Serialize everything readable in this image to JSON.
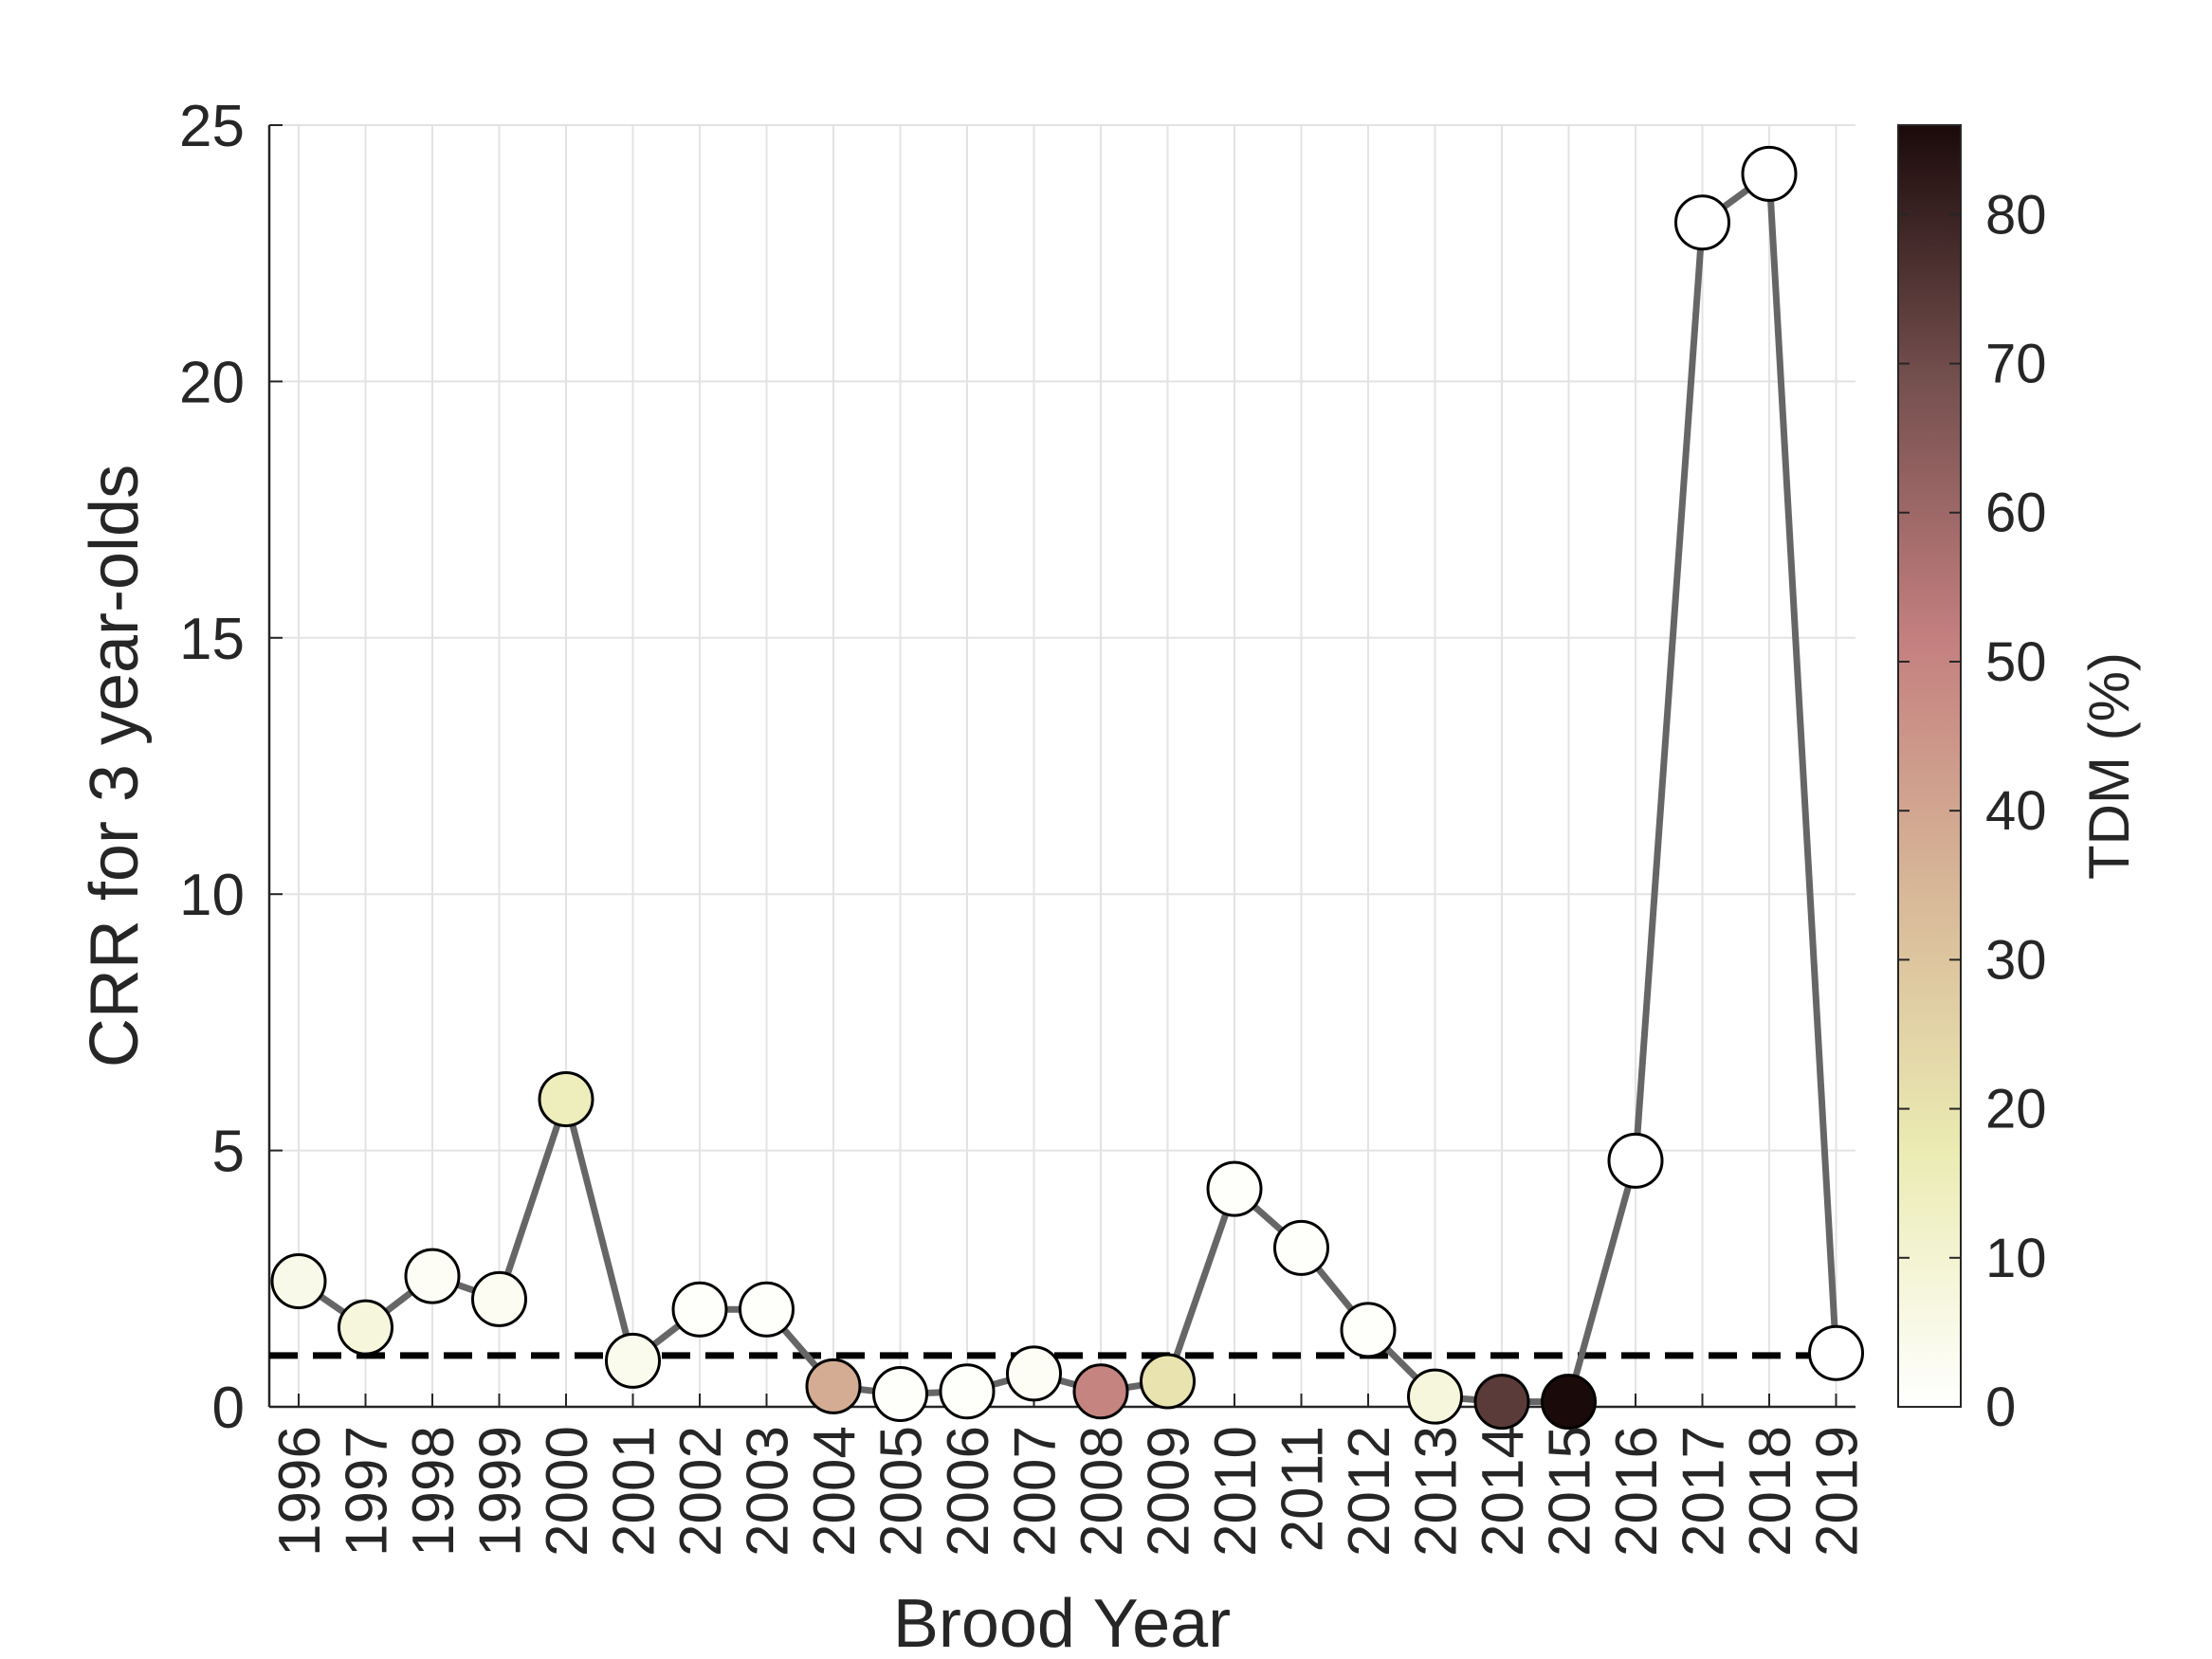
{
  "chart_data": {
    "type": "scatter",
    "title": "",
    "xlabel": "Brood Year",
    "ylabel": "CRR for 3 year-olds",
    "x": [
      1996,
      1997,
      1998,
      1999,
      2000,
      2001,
      2002,
      2003,
      2004,
      2005,
      2006,
      2007,
      2008,
      2009,
      2010,
      2011,
      2012,
      2013,
      2014,
      2015,
      2016,
      2017,
      2018,
      2019
    ],
    "x_tick_labels": [
      "1996",
      "1997",
      "1998",
      "1999",
      "2000",
      "2001",
      "2002",
      "2003",
      "2004",
      "2005",
      "2006",
      "2007",
      "2008",
      "2009",
      "2010",
      "2011",
      "2012",
      "2013",
      "2014",
      "2015",
      "2016",
      "2017",
      "2018",
      "2019"
    ],
    "series": [
      {
        "values": [
          2.45,
          1.55,
          2.55,
          2.1,
          6.0,
          0.9,
          1.9,
          1.9,
          0.4,
          0.25,
          0.3,
          0.65,
          0.3,
          0.5,
          4.25,
          3.1,
          1.5,
          0.2,
          0.1,
          0.1,
          4.8,
          23.1,
          24.05,
          1.05
        ],
        "tdm_percent": [
          5,
          8,
          2,
          3,
          15,
          4,
          1,
          1,
          38,
          1,
          1,
          2,
          50,
          20,
          1,
          1,
          1,
          8,
          74,
          86,
          0,
          0,
          0,
          0
        ]
      }
    ],
    "reference_line": {
      "y": 1,
      "style": "dashed"
    },
    "ylim": [
      0,
      25
    ],
    "yticks": [
      0,
      5,
      10,
      15,
      20,
      25
    ],
    "grid": true,
    "colorbar": {
      "label": "TDM (%)",
      "range": [
        0,
        86
      ],
      "ticks": [
        0,
        10,
        20,
        30,
        40,
        50,
        60,
        70,
        80
      ],
      "colors": [
        "#ffffff",
        "#ebebb3",
        "#d8b898",
        "#c47f7f",
        "#75504f",
        "#1b0a0a"
      ]
    },
    "line_color": "#666666"
  }
}
